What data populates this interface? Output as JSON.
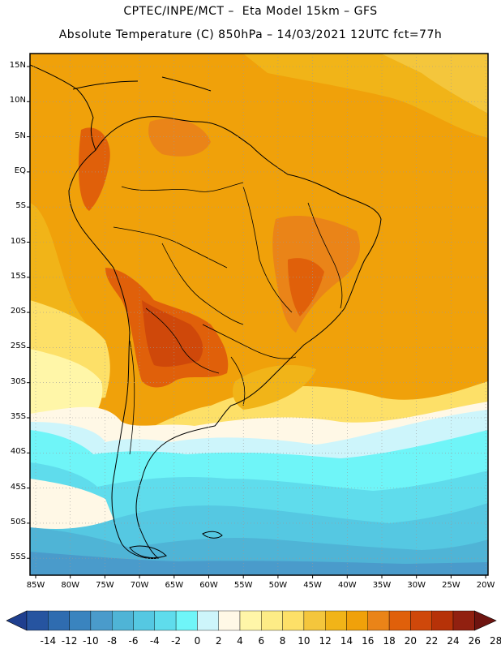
{
  "header": {
    "line1": "CPTEC/INPE/MCT –  Eta Model 15km – GFS",
    "line2": "Absolute Temperature (C) 850hPa – 14/03/2021 12UTC fct=77h"
  },
  "map": {
    "lat_labels": [
      "15N",
      "10N",
      "5N",
      "EQ",
      "5S",
      "10S",
      "15S",
      "20S",
      "25S",
      "30S",
      "35S",
      "40S",
      "45S",
      "50S",
      "55S"
    ],
    "lon_labels": [
      "85W",
      "80W",
      "75W",
      "70W",
      "65W",
      "60W",
      "55W",
      "50W",
      "45W",
      "40W",
      "35W",
      "30W",
      "25W",
      "20W"
    ]
  },
  "colorbar": {
    "labels": [
      "-14",
      "-12",
      "-10",
      "-8",
      "-6",
      "-4",
      "-2",
      "0",
      "2",
      "4",
      "6",
      "8",
      "10",
      "12",
      "14",
      "16",
      "18",
      "20",
      "22",
      "24",
      "26",
      "28"
    ],
    "colors": [
      "#1f3f8f",
      "#2654a0",
      "#2f6cb0",
      "#3a84bf",
      "#4a9bcb",
      "#4fb4d6",
      "#55c8e2",
      "#5fdcec",
      "#6ff5f8",
      "#cdf5fb",
      "#fff8e6",
      "#fff6a8",
      "#fdec86",
      "#fde068",
      "#f4c63c",
      "#f1b418",
      "#f0a10a",
      "#ea8418",
      "#e0600a",
      "#cf480a",
      "#b63208",
      "#912010",
      "#6e1410"
    ]
  }
}
